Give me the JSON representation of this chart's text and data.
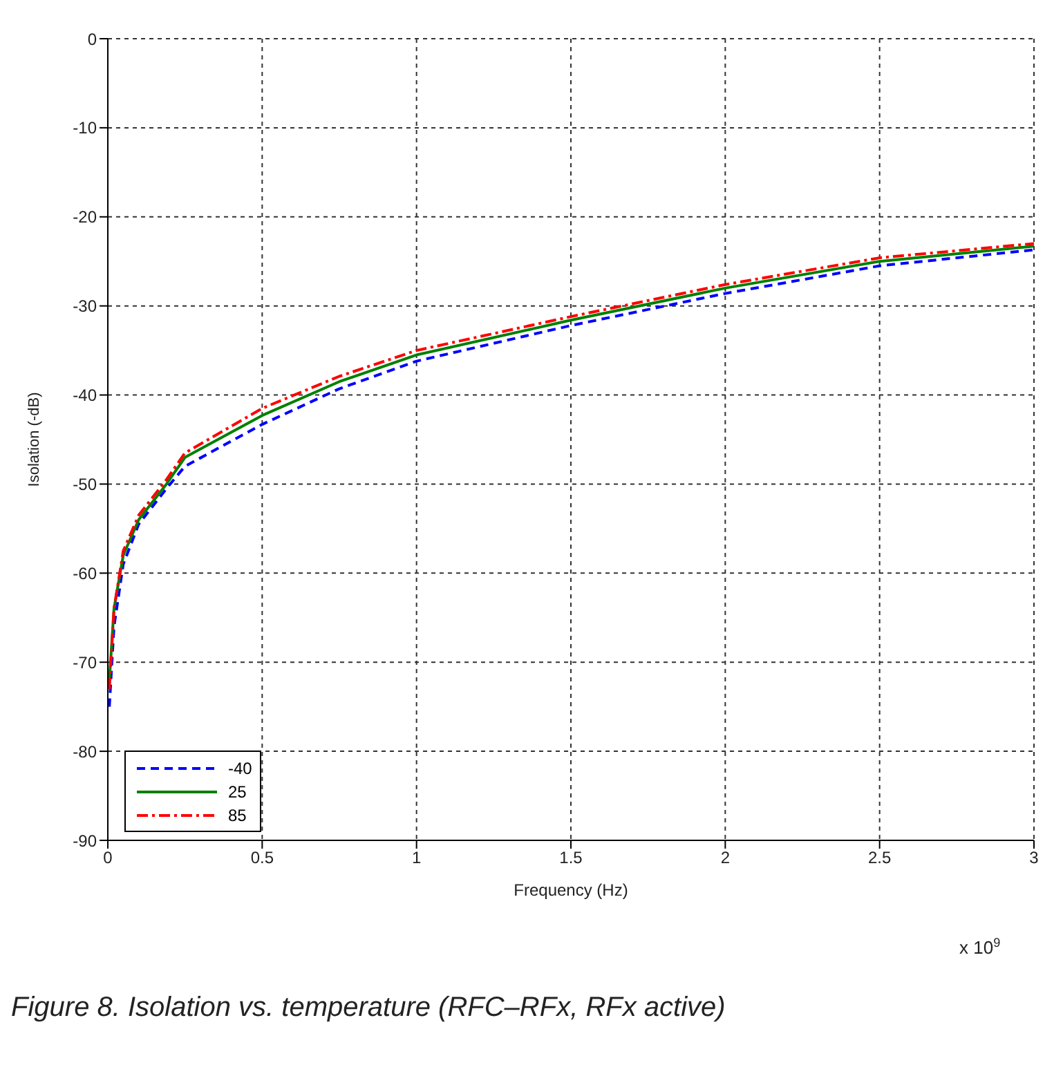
{
  "chart_data": {
    "type": "line",
    "xlabel": "Frequency (Hz)",
    "ylabel": "Isolation (-dB)",
    "x": [
      0.005,
      0.02,
      0.05,
      0.1,
      0.19,
      0.25,
      0.5,
      0.75,
      1,
      1.5,
      2,
      2.5,
      3
    ],
    "series": [
      {
        "name": "-40",
        "color": "#0000ff",
        "line_style": "dashed",
        "values": [
          -75,
          -66,
          -59,
          -54.5,
          -50.5,
          -48,
          -43.3,
          -39.3,
          -36.2,
          -32.2,
          -28.6,
          -25.5,
          -23.7
        ]
      },
      {
        "name": "25",
        "color": "#008000",
        "line_style": "solid",
        "values": [
          -72,
          -64,
          -58,
          -54,
          -50,
          -47,
          -42.3,
          -38.5,
          -35.5,
          -31.6,
          -28,
          -25,
          -23.3
        ]
      },
      {
        "name": "85",
        "color": "#ff0000",
        "line_style": "dashdot",
        "values": [
          -73,
          -64,
          -57.5,
          -53.5,
          -49.5,
          -46.5,
          -41.5,
          -37.9,
          -35,
          -31.2,
          -27.6,
          -24.6,
          -23
        ]
      }
    ],
    "xlim": [
      0,
      3
    ],
    "xticks": [
      0,
      0.5,
      1,
      1.5,
      2,
      2.5,
      3
    ],
    "ylim": [
      -90,
      0
    ],
    "yticks": [
      -90,
      -80,
      -70,
      -60,
      -50,
      -40,
      -30,
      -20,
      -10,
      0
    ],
    "grid": true,
    "legend": "bottom left",
    "marker": "none",
    "annotations": [
      "x 10$^{9}$",
      "Figure 8. Isolation vs. temperature (RFC–RFx, RFx active)"
    ]
  }
}
